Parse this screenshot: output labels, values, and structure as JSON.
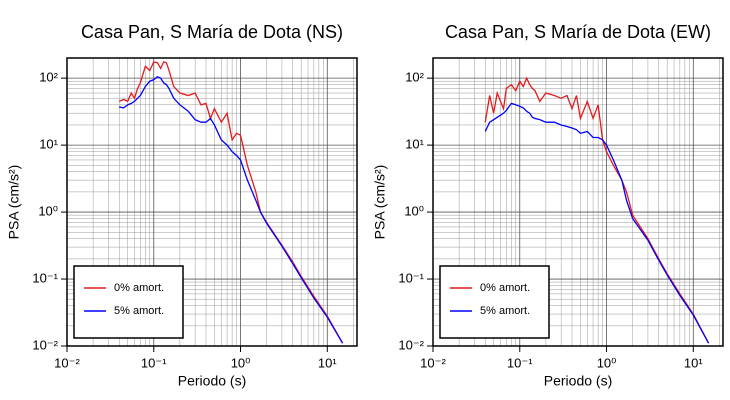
{
  "chart_data": [
    {
      "type": "line",
      "title": "Casa Pan, S María de Dota (NS)",
      "xlabel": "Periodo (s)",
      "ylabel": "PSA (cm/s²)",
      "xscale": "log",
      "yscale": "log",
      "grid": true,
      "minor_grid": true,
      "legend": "lower left",
      "xlim": [
        0.01,
        22
      ],
      "ylim": [
        0.01,
        200
      ],
      "xticks": [
        {
          "value": 0.01,
          "label": "10⁻²"
        },
        {
          "value": 0.1,
          "label": "10⁻¹"
        },
        {
          "value": 1,
          "label": "10⁰"
        },
        {
          "value": 10,
          "label": "10¹"
        }
      ],
      "yticks": [
        {
          "value": 0.01,
          "label": "10⁻²"
        },
        {
          "value": 0.1,
          "label": "10⁻¹"
        },
        {
          "value": 1,
          "label": "10⁰"
        },
        {
          "value": 10,
          "label": "10¹"
        },
        {
          "value": 100,
          "label": "10²"
        }
      ],
      "x": [
        0.04,
        0.045,
        0.05,
        0.055,
        0.06,
        0.065,
        0.07,
        0.08,
        0.09,
        0.1,
        0.11,
        0.12,
        0.13,
        0.14,
        0.15,
        0.17,
        0.2,
        0.25,
        0.3,
        0.35,
        0.4,
        0.45,
        0.5,
        0.6,
        0.7,
        0.8,
        0.9,
        1.0,
        1.2,
        1.5,
        1.7,
        2,
        3,
        4,
        5,
        7,
        10,
        15
      ],
      "series": [
        {
          "name": "0% amort.",
          "color": "#e41a1c",
          "values": [
            45,
            48,
            45,
            60,
            50,
            70,
            85,
            150,
            130,
            175,
            170,
            140,
            175,
            170,
            130,
            75,
            60,
            55,
            60,
            40,
            42,
            25,
            35,
            22,
            30,
            12,
            15,
            14,
            5,
            2,
            1.0,
            0.7,
            0.32,
            0.18,
            0.11,
            0.055,
            0.028,
            0.011
          ]
        },
        {
          "name": "5% amort.",
          "color": "#0000ff",
          "values": [
            37,
            36,
            40,
            42,
            45,
            50,
            55,
            75,
            90,
            95,
            105,
            100,
            85,
            80,
            70,
            50,
            40,
            32,
            24,
            22,
            22,
            25,
            20,
            12,
            10,
            8,
            7,
            6,
            3,
            1.5,
            1.0,
            0.68,
            0.31,
            0.17,
            0.105,
            0.052,
            0.027,
            0.011
          ]
        }
      ]
    },
    {
      "type": "line",
      "title": "Casa Pan, S María de Dota (EW)",
      "xlabel": "Periodo (s)",
      "ylabel": "PSA (cm/s²)",
      "xscale": "log",
      "yscale": "log",
      "grid": true,
      "minor_grid": true,
      "legend": "lower left",
      "xlim": [
        0.01,
        22
      ],
      "ylim": [
        0.01,
        200
      ],
      "xticks": [
        {
          "value": 0.01,
          "label": "10⁻²"
        },
        {
          "value": 0.1,
          "label": "10⁻¹"
        },
        {
          "value": 1,
          "label": "10⁰"
        },
        {
          "value": 10,
          "label": "10¹"
        }
      ],
      "yticks": [
        {
          "value": 0.01,
          "label": "10⁻²"
        },
        {
          "value": 0.1,
          "label": "10⁻¹"
        },
        {
          "value": 1,
          "label": "10⁰"
        },
        {
          "value": 10,
          "label": "10¹"
        },
        {
          "value": 100,
          "label": "10²"
        }
      ],
      "x": [
        0.04,
        0.045,
        0.05,
        0.055,
        0.06,
        0.065,
        0.07,
        0.08,
        0.09,
        0.1,
        0.11,
        0.12,
        0.13,
        0.14,
        0.15,
        0.17,
        0.2,
        0.25,
        0.3,
        0.35,
        0.4,
        0.45,
        0.5,
        0.6,
        0.7,
        0.8,
        0.9,
        1.0,
        1.2,
        1.5,
        1.7,
        2,
        3,
        4,
        5,
        7,
        10,
        15
      ],
      "series": [
        {
          "name": "0% amort.",
          "color": "#e41a1c",
          "values": [
            22,
            55,
            30,
            60,
            45,
            35,
            70,
            80,
            65,
            90,
            75,
            100,
            80,
            70,
            65,
            45,
            60,
            55,
            50,
            55,
            35,
            55,
            25,
            45,
            25,
            40,
            12,
            8,
            5,
            3,
            2.0,
            0.9,
            0.4,
            0.2,
            0.12,
            0.06,
            0.03,
            0.011
          ]
        },
        {
          "name": "5% amort.",
          "color": "#0000ff",
          "values": [
            16,
            22,
            24,
            26,
            28,
            30,
            33,
            42,
            40,
            38,
            36,
            32,
            30,
            26,
            25,
            24,
            22,
            22,
            20,
            19,
            18,
            17,
            15,
            16,
            13,
            13,
            12,
            10,
            6,
            3,
            1.5,
            0.8,
            0.38,
            0.19,
            0.115,
            0.057,
            0.029,
            0.011
          ]
        }
      ]
    }
  ]
}
